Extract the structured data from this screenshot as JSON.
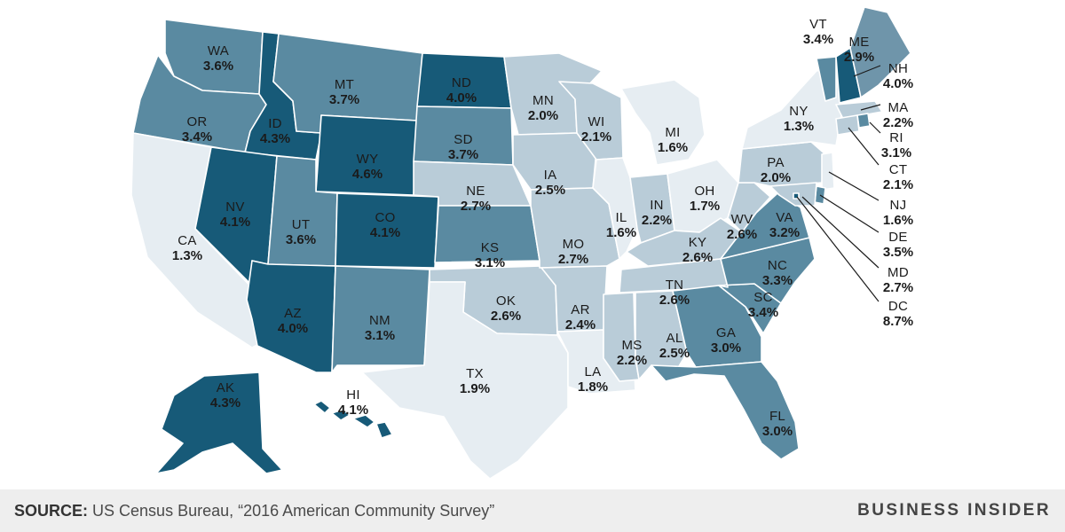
{
  "colors": {
    "c1": "#e6edf2",
    "c2": "#b9ccd8",
    "c3": "#6f95aa",
    "c4": "#5a8aa1",
    "c5": "#175a78",
    "background": "#ffffff",
    "footer": "#eeeeee"
  },
  "states": [
    {
      "abbr": "WA",
      "value": "3.6%",
      "v": 3.6
    },
    {
      "abbr": "OR",
      "value": "3.4%",
      "v": 3.4
    },
    {
      "abbr": "CA",
      "value": "1.3%",
      "v": 1.3
    },
    {
      "abbr": "ID",
      "value": "4.3%",
      "v": 4.3
    },
    {
      "abbr": "NV",
      "value": "4.1%",
      "v": 4.1
    },
    {
      "abbr": "MT",
      "value": "3.7%",
      "v": 3.7
    },
    {
      "abbr": "WY",
      "value": "4.6%",
      "v": 4.6
    },
    {
      "abbr": "UT",
      "value": "3.6%",
      "v": 3.6
    },
    {
      "abbr": "AZ",
      "value": "4.0%",
      "v": 4.0
    },
    {
      "abbr": "CO",
      "value": "4.1%",
      "v": 4.1
    },
    {
      "abbr": "NM",
      "value": "3.1%",
      "v": 3.1
    },
    {
      "abbr": "ND",
      "value": "4.0%",
      "v": 4.0
    },
    {
      "abbr": "SD",
      "value": "3.7%",
      "v": 3.7
    },
    {
      "abbr": "NE",
      "value": "2.7%",
      "v": 2.7
    },
    {
      "abbr": "KS",
      "value": "3.1%",
      "v": 3.1
    },
    {
      "abbr": "OK",
      "value": "2.6%",
      "v": 2.6
    },
    {
      "abbr": "TX",
      "value": "1.9%",
      "v": 1.9
    },
    {
      "abbr": "MN",
      "value": "2.0%",
      "v": 2.0
    },
    {
      "abbr": "IA",
      "value": "2.5%",
      "v": 2.5
    },
    {
      "abbr": "MO",
      "value": "2.7%",
      "v": 2.7
    },
    {
      "abbr": "AR",
      "value": "2.4%",
      "v": 2.4
    },
    {
      "abbr": "LA",
      "value": "1.8%",
      "v": 1.8
    },
    {
      "abbr": "WI",
      "value": "2.1%",
      "v": 2.1
    },
    {
      "abbr": "IL",
      "value": "1.6%",
      "v": 1.6
    },
    {
      "abbr": "MI",
      "value": "1.6%",
      "v": 1.6
    },
    {
      "abbr": "IN",
      "value": "2.2%",
      "v": 2.2
    },
    {
      "abbr": "OH",
      "value": "1.7%",
      "v": 1.7
    },
    {
      "abbr": "KY",
      "value": "2.6%",
      "v": 2.6
    },
    {
      "abbr": "TN",
      "value": "2.6%",
      "v": 2.6
    },
    {
      "abbr": "MS",
      "value": "2.2%",
      "v": 2.2
    },
    {
      "abbr": "AL",
      "value": "2.5%",
      "v": 2.5
    },
    {
      "abbr": "GA",
      "value": "3.0%",
      "v": 3.0
    },
    {
      "abbr": "FL",
      "value": "3.0%",
      "v": 3.0
    },
    {
      "abbr": "SC",
      "value": "3.4%",
      "v": 3.4
    },
    {
      "abbr": "NC",
      "value": "3.3%",
      "v": 3.3
    },
    {
      "abbr": "VA",
      "value": "3.2%",
      "v": 3.2
    },
    {
      "abbr": "WV",
      "value": "2.6%",
      "v": 2.6
    },
    {
      "abbr": "PA",
      "value": "2.0%",
      "v": 2.0
    },
    {
      "abbr": "NY",
      "value": "1.3%",
      "v": 1.3
    },
    {
      "abbr": "VT",
      "value": "3.4%",
      "v": 3.4
    },
    {
      "abbr": "NH",
      "value": "4.0%",
      "v": 4.0
    },
    {
      "abbr": "ME",
      "value": "2.9%",
      "v": 2.9
    },
    {
      "abbr": "MA",
      "value": "2.2%",
      "v": 2.2
    },
    {
      "abbr": "RI",
      "value": "3.1%",
      "v": 3.1
    },
    {
      "abbr": "CT",
      "value": "2.1%",
      "v": 2.1
    },
    {
      "abbr": "NJ",
      "value": "1.6%",
      "v": 1.6
    },
    {
      "abbr": "DE",
      "value": "3.5%",
      "v": 3.5
    },
    {
      "abbr": "MD",
      "value": "2.7%",
      "v": 2.7
    },
    {
      "abbr": "DC",
      "value": "8.7%",
      "v": 8.7
    },
    {
      "abbr": "AK",
      "value": "4.3%",
      "v": 4.3
    },
    {
      "abbr": "HI",
      "value": "4.1%",
      "v": 4.1
    }
  ],
  "footer": {
    "source_label": "SOURCE:",
    "source_text": "US Census Bureau, “2016 American Community Survey”",
    "brand": "BUSINESS INSIDER"
  }
}
